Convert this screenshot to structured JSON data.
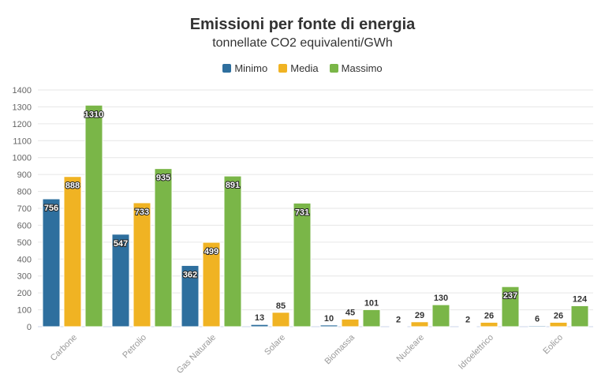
{
  "chart_data": {
    "type": "bar",
    "title": "Emissioni per fonte di energia",
    "subtitle": "tonnellate CO2 equivalenti/GWh",
    "categories": [
      "Carbone",
      "Petrolio",
      "Gas Naturale",
      "Solare",
      "Biomassa",
      "Nucleare",
      "Idroelettrico",
      "Eolico"
    ],
    "series": [
      {
        "name": "Minimo",
        "color": "#2e6f9e",
        "values": [
          756,
          547,
          362,
          13,
          10,
          2,
          2,
          6
        ]
      },
      {
        "name": "Media",
        "color": "#f0b323",
        "values": [
          888,
          733,
          499,
          85,
          45,
          29,
          26,
          26
        ]
      },
      {
        "name": "Massimo",
        "color": "#7ab648",
        "values": [
          1310,
          935,
          891,
          731,
          101,
          130,
          237,
          124
        ]
      }
    ],
    "ylim": [
      0,
      1400
    ],
    "yticks": [
      0,
      100,
      200,
      300,
      400,
      500,
      600,
      700,
      800,
      900,
      1000,
      1100,
      1200,
      1300,
      1400
    ],
    "legend_position": "top-center",
    "grid": true
  }
}
